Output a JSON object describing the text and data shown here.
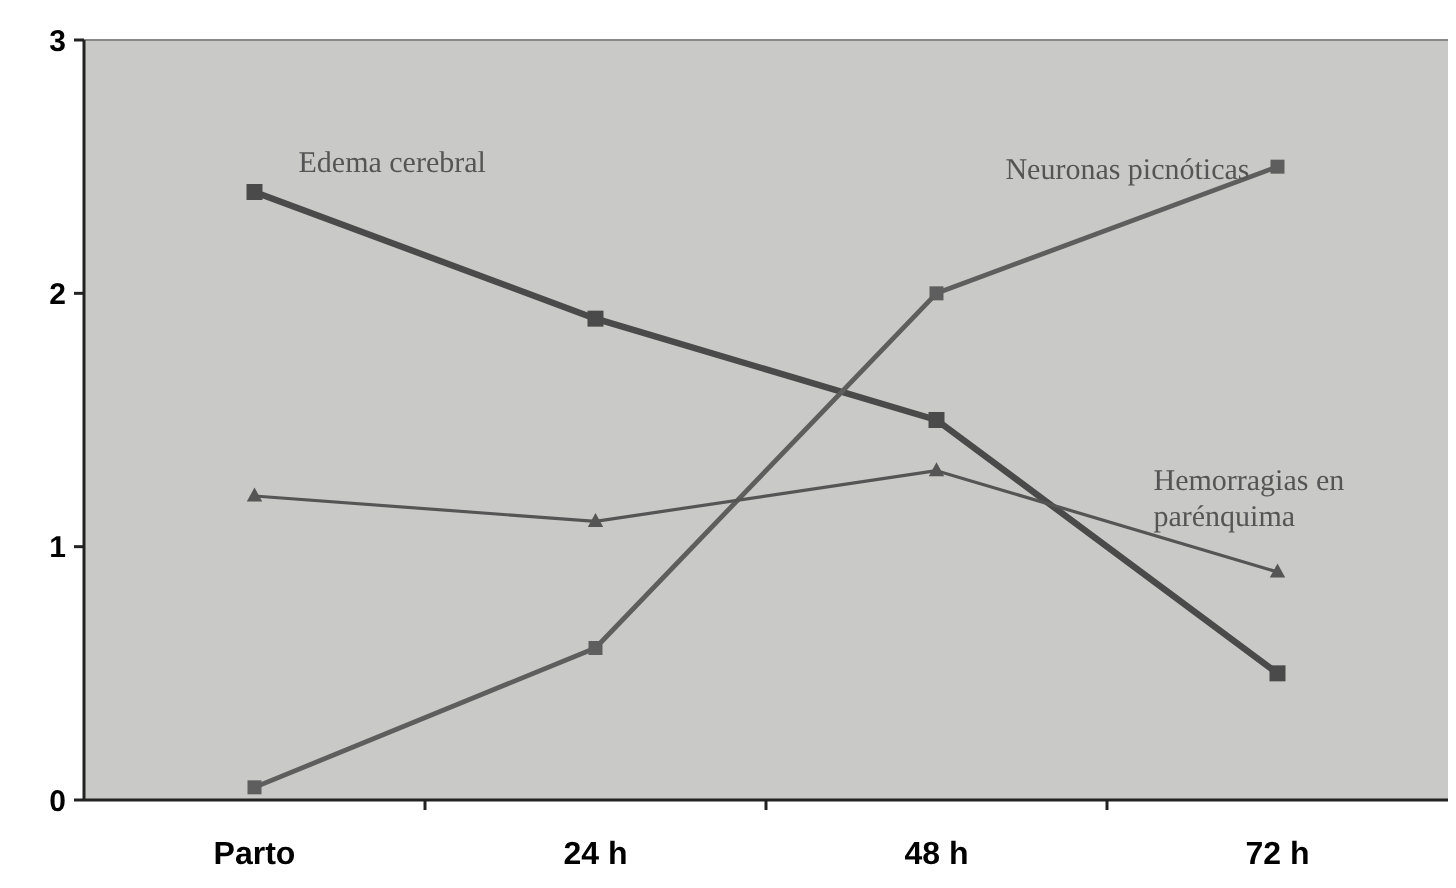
{
  "chart_data": {
    "type": "line",
    "categories": [
      "Parto",
      "24 h",
      "48 h",
      "72 h"
    ],
    "series": [
      {
        "name": "Edema cerebral",
        "color": "#4a4a4a",
        "values": [
          2.4,
          1.9,
          1.5,
          0.5
        ],
        "marker": "square"
      },
      {
        "name": "Neuronas picnóticas",
        "color": "#5e5e5e",
        "values": [
          0.05,
          0.6,
          2.0,
          2.5
        ],
        "marker": "square"
      },
      {
        "name": "Hemorragias en parénquima",
        "color": "#555555",
        "values": [
          1.2,
          1.1,
          1.3,
          0.9
        ],
        "marker": "triangle"
      }
    ],
    "ylim": [
      0,
      3
    ],
    "yticks": [
      0,
      1,
      2,
      3
    ],
    "grid": false
  }
}
